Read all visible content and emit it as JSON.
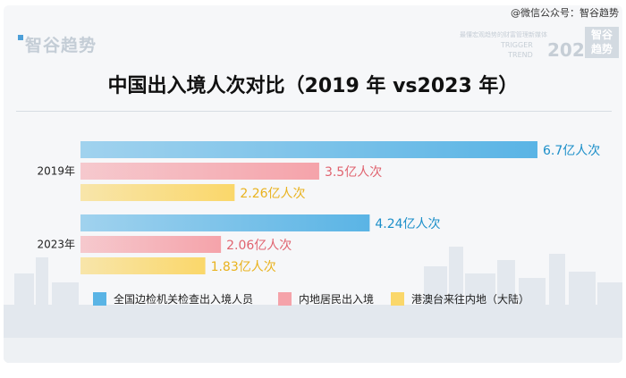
{
  "header": {
    "brand": "智谷趋势",
    "watermark": "@微信公众号：智谷趋势",
    "tagline": "最懂宏观趋势的财富管理新媒体",
    "trigger_line1": "TRIGGER",
    "trigger_line2": "TREND",
    "year_badge": "2024",
    "corner_line1": "智谷",
    "corner_line2": "趋势"
  },
  "chart_data": {
    "type": "bar",
    "orientation": "horizontal",
    "title": "中国出入境人次对比（2019 年 vs2023 年）",
    "categories": [
      "2019年",
      "2023年"
    ],
    "series": [
      {
        "name": "全国边检机关检查出入境人员",
        "values": [
          6.7,
          4.24
        ],
        "labels": [
          "6.7亿人次",
          "4.24亿人次"
        ],
        "color": "#5ab4e5",
        "label_color": "#1c8fc9"
      },
      {
        "name": "内地居民出入境",
        "values": [
          3.5,
          2.06
        ],
        "labels": [
          "3.5亿人次",
          "2.06亿人次"
        ],
        "color": "#f5a3aa",
        "label_color": "#e0636f"
      },
      {
        "name": "港澳台来往内地（大陆）",
        "values": [
          2.26,
          1.83
        ],
        "labels": [
          "2.26亿人次",
          "1.83亿人次"
        ],
        "color": "#fad76a",
        "label_color": "#e9b21d"
      }
    ],
    "unit": "亿人次",
    "xlim": [
      0,
      6.7
    ],
    "grid": false,
    "legend": "bottom"
  }
}
